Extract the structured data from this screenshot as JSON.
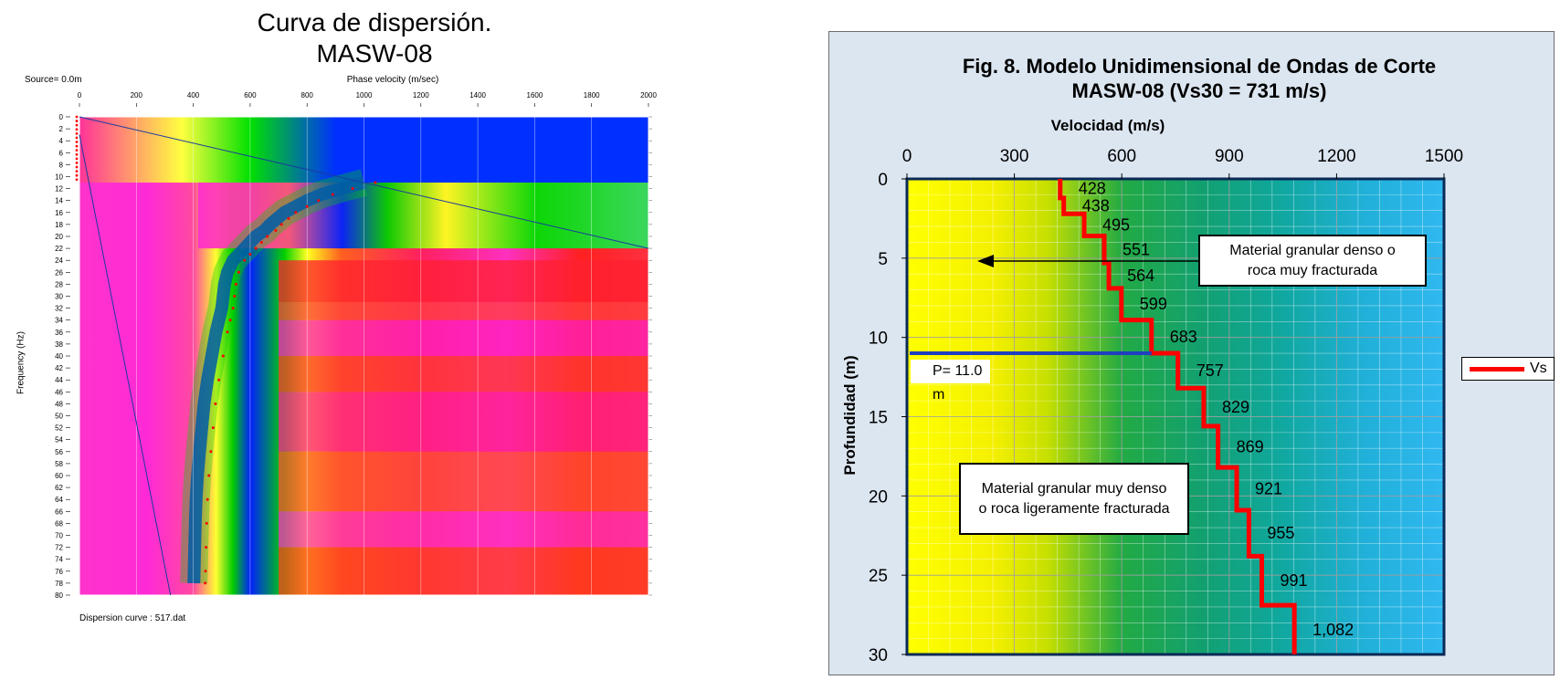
{
  "left_panel": {
    "title_line1": "Curva de dispersión.",
    "title_line2": "MASW-08",
    "source_label": "Source= 0.0m",
    "footer_label": "Dispersion curve : 517.dat"
  },
  "right_panel": {
    "title_line1": "Fig. 8. Modelo Unidimensional de Ondas de Corte",
    "title_line2": "MASW-08 (Vs30 = 731 m/s)",
    "annotation_upper_line1": "Material granular denso o",
    "annotation_upper_line2": "roca muy fracturada",
    "annotation_lower_line1": "Material granular muy denso",
    "annotation_lower_line2": "o roca ligeramente fracturada",
    "p_label": "P= 11.0 m",
    "legend_label": "Vs"
  },
  "colors": {
    "vs_line": "#ff0000",
    "p_line": "#1f3fbf",
    "frame_bg": "#dce6f1"
  },
  "chart_data": [
    {
      "type": "heatmap",
      "title": "Curva de dispersión. MASW-08",
      "xlabel": "Phase velocity (m/sec)",
      "ylabel": "Frequency (Hz)",
      "xlim": [
        0,
        2000
      ],
      "ylim": [
        0,
        80
      ],
      "xticks": [
        0,
        200,
        400,
        600,
        800,
        1000,
        1200,
        1400,
        1600,
        1800,
        2000
      ],
      "yticks": [
        0,
        2,
        4,
        6,
        8,
        10,
        12,
        14,
        16,
        18,
        20,
        22,
        24,
        26,
        28,
        30,
        32,
        34,
        36,
        38,
        40,
        42,
        44,
        46,
        48,
        50,
        52,
        54,
        56,
        58,
        60,
        62,
        64,
        66,
        68,
        70,
        72,
        74,
        76,
        78,
        80
      ],
      "dispersion_curve": {
        "frequency": [
          11,
          12,
          13,
          14,
          15,
          16,
          17,
          18,
          19,
          20,
          21,
          22,
          23,
          24,
          26,
          28,
          30,
          32,
          34,
          36,
          40,
          44,
          48,
          52,
          56,
          60,
          64,
          68,
          72,
          76,
          78
        ],
        "velocity": [
          1040,
          960,
          890,
          840,
          800,
          760,
          735,
          710,
          690,
          660,
          640,
          620,
          600,
          580,
          560,
          550,
          545,
          540,
          530,
          520,
          505,
          490,
          478,
          470,
          462,
          455,
          450,
          447,
          445,
          443,
          442
        ]
      }
    },
    {
      "type": "line",
      "title": "Fig. 8. Modelo Unidimensional de Ondas de Corte MASW-08 (Vs30 = 731 m/s)",
      "xlabel": "Velocidad (m/s)",
      "ylabel": "Profundidad (m)",
      "xlim": [
        0,
        1500
      ],
      "ylim": [
        0,
        30
      ],
      "xticks": [
        "0",
        "300",
        "600",
        "900",
        "1200",
        "1500"
      ],
      "yticks": [
        "0",
        "5",
        "10",
        "15",
        "20",
        "25",
        "30"
      ],
      "series": [
        {
          "name": "Vs",
          "layers": [
            {
              "top": 0,
              "bottom": 1.2,
              "vs": 428,
              "label": "428"
            },
            {
              "top": 1.2,
              "bottom": 2.2,
              "vs": 438,
              "label": "438"
            },
            {
              "top": 2.2,
              "bottom": 3.6,
              "vs": 495,
              "label": "495"
            },
            {
              "top": 3.6,
              "bottom": 5.3,
              "vs": 551,
              "label": "551"
            },
            {
              "top": 5.3,
              "bottom": 6.9,
              "vs": 564,
              "label": "564"
            },
            {
              "top": 6.9,
              "bottom": 8.9,
              "vs": 599,
              "label": "599"
            },
            {
              "top": 8.9,
              "bottom": 11.0,
              "vs": 683,
              "label": "683"
            },
            {
              "top": 11.0,
              "bottom": 13.2,
              "vs": 757,
              "label": "757"
            },
            {
              "top": 13.2,
              "bottom": 15.6,
              "vs": 829,
              "label": "829"
            },
            {
              "top": 15.6,
              "bottom": 18.2,
              "vs": 869,
              "label": "869"
            },
            {
              "top": 18.2,
              "bottom": 20.9,
              "vs": 921,
              "label": "921"
            },
            {
              "top": 20.9,
              "bottom": 23.8,
              "vs": 955,
              "label": "955"
            },
            {
              "top": 23.8,
              "bottom": 26.9,
              "vs": 991,
              "label": "991"
            },
            {
              "top": 26.9,
              "bottom": 30,
              "vs": 1082,
              "label": "1,082"
            }
          ]
        }
      ],
      "p_depth": 11.0,
      "legend": "right"
    }
  ]
}
